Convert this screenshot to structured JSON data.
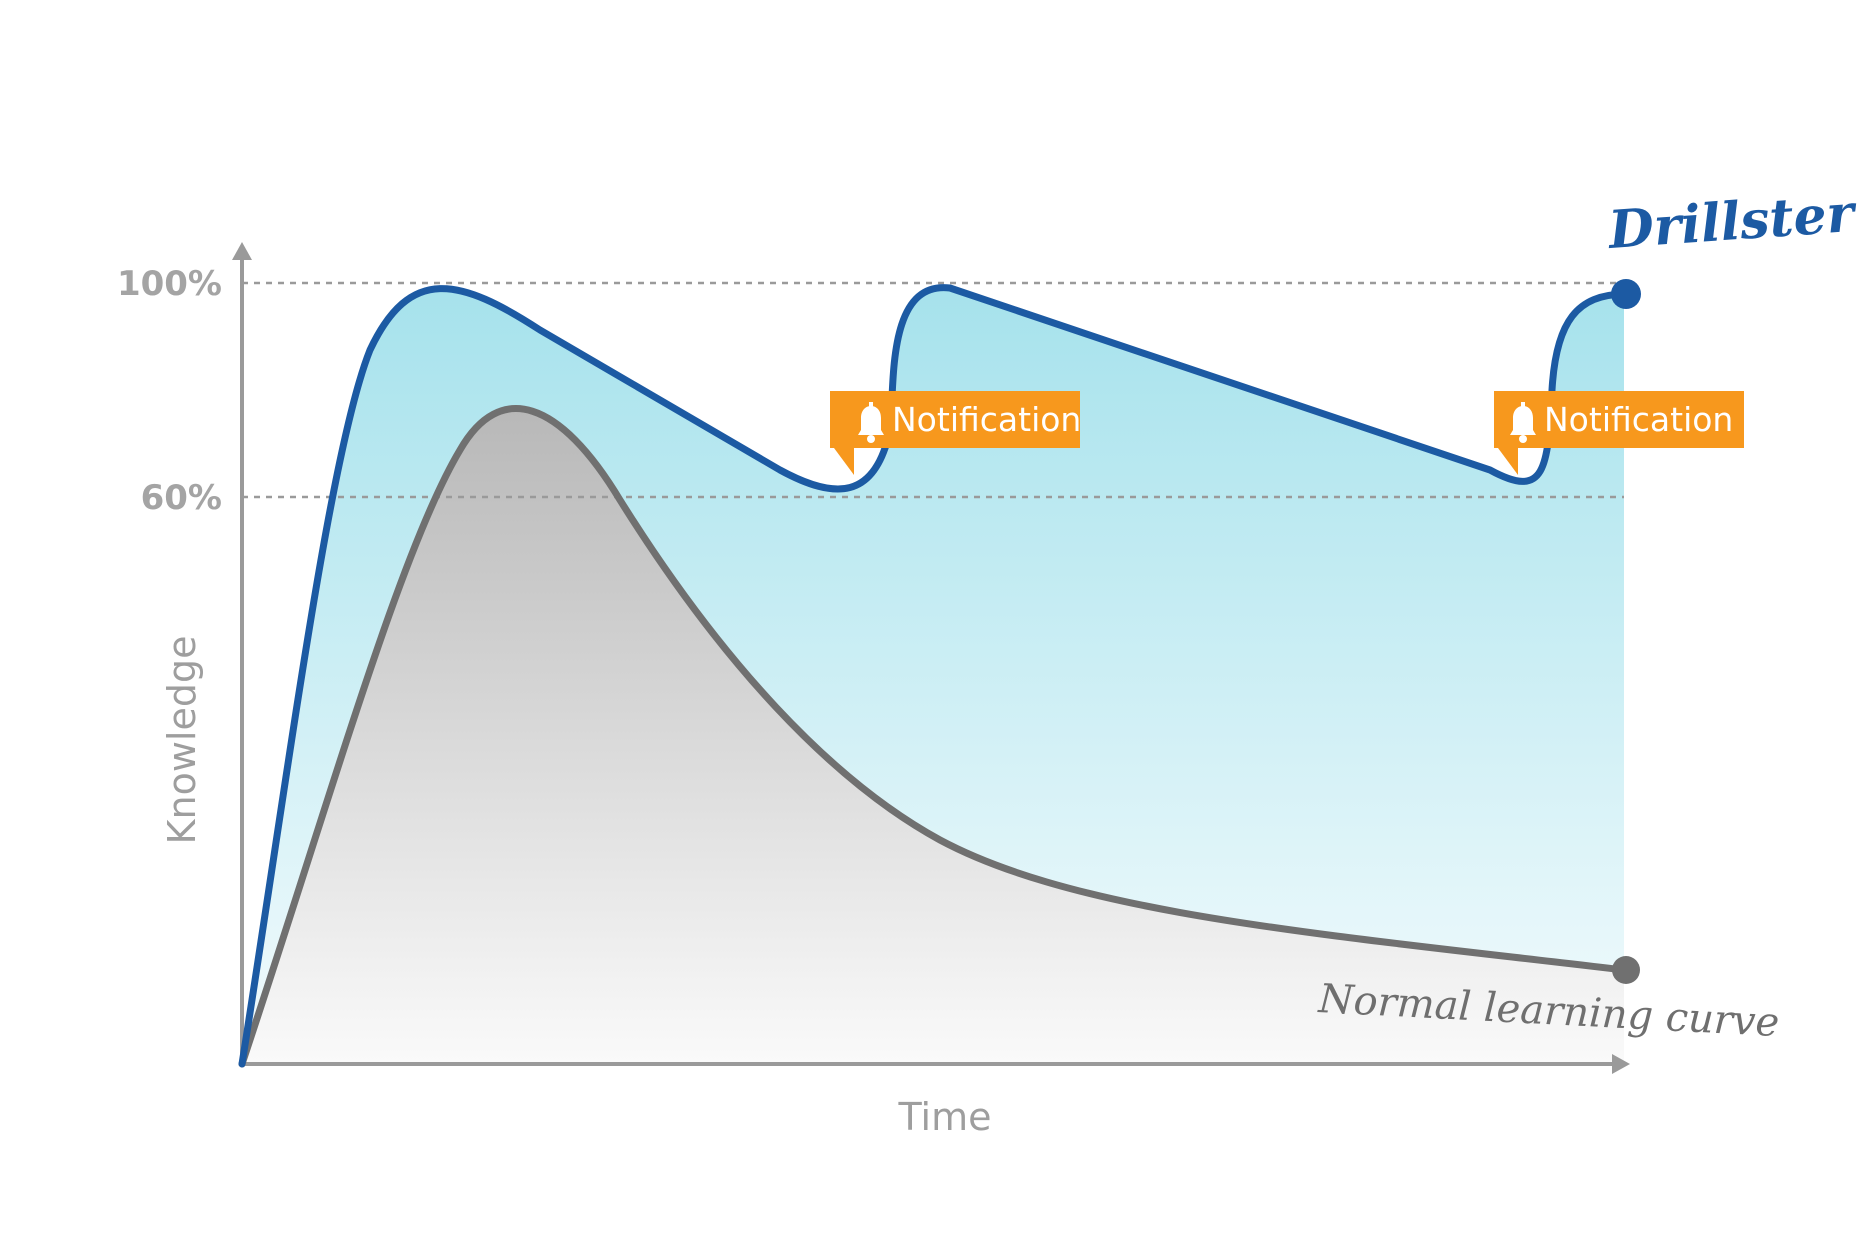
{
  "chart_data": {
    "type": "line",
    "y_ticks": [
      "100%",
      "60%"
    ],
    "y_tick_values": [
      100,
      60
    ],
    "xlabel": "Time",
    "ylabel": "Knowledge",
    "ylim": [
      0,
      100
    ],
    "grid": "dashed lines at 100% and 60%",
    "series": [
      {
        "name": "Drillster",
        "color": "#1c5aa3",
        "fill": "light cyan gradient",
        "points": [
          {
            "t": 0,
            "k": 0
          },
          {
            "t": 15,
            "k": 99
          },
          {
            "t": 44,
            "k": 74
          },
          {
            "t": 50,
            "k": 99
          },
          {
            "t": 92,
            "k": 74
          },
          {
            "t": 100,
            "k": 99
          }
        ]
      },
      {
        "name": "Normal learning curve",
        "color": "#707070",
        "fill": "gray gradient",
        "points": [
          {
            "t": 0,
            "k": 0
          },
          {
            "t": 20,
            "k": 83
          },
          {
            "t": 55,
            "k": 27
          },
          {
            "t": 100,
            "k": 12
          }
        ]
      }
    ],
    "annotations": [
      {
        "label": "Notification",
        "icon": "bell-icon",
        "color": "#f7981d",
        "at_t": 44
      },
      {
        "label": "Notification",
        "icon": "bell-icon",
        "color": "#f7981d",
        "at_t": 92
      }
    ]
  }
}
